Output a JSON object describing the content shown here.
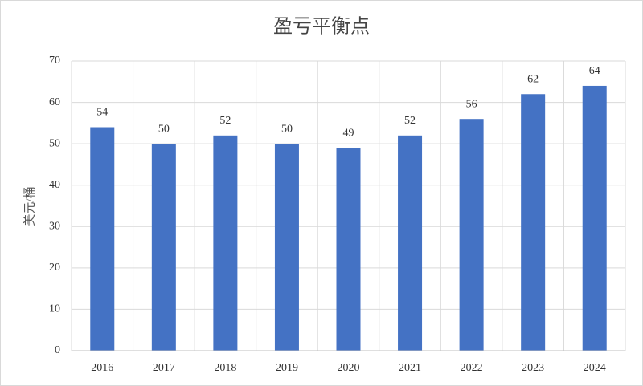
{
  "chart_data": {
    "type": "bar",
    "title": "盈亏平衡点",
    "y_label": "美元/桶",
    "categories": [
      "2016",
      "2017",
      "2018",
      "2019",
      "2020",
      "2021",
      "2022",
      "2023",
      "2024"
    ],
    "values": [
      54,
      50,
      52,
      50,
      49,
      52,
      56,
      62,
      64
    ],
    "color": "#4472c4",
    "ylim": [
      0,
      70
    ],
    "yticks": [
      0,
      10,
      20,
      30,
      40,
      50,
      60,
      70
    ],
    "grid": true
  }
}
